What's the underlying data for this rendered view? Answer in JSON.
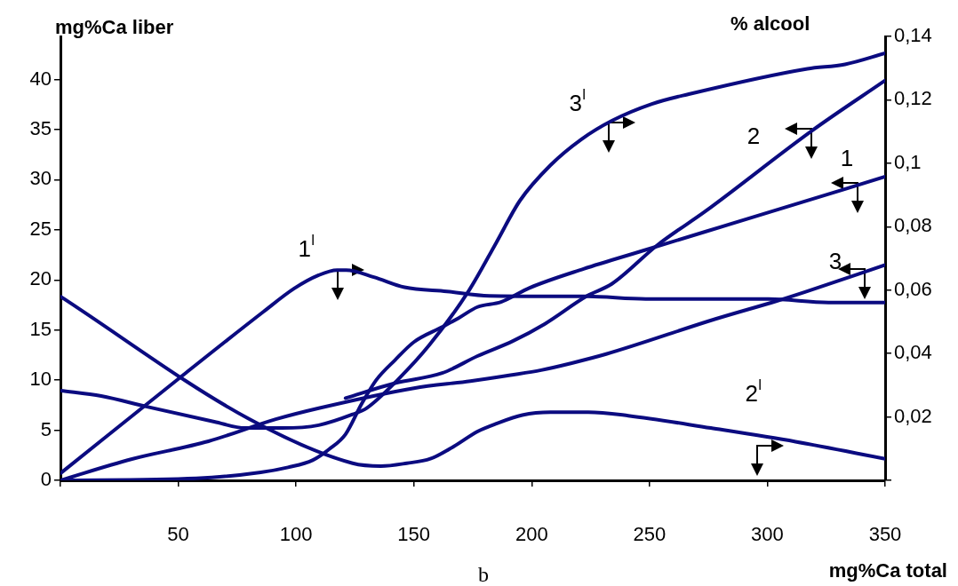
{
  "chart_data": {
    "type": "line",
    "xlabel": "mg%Ca total",
    "ylabel": "mg%Ca liber",
    "y2label": "% alcool",
    "xlim": [
      0,
      350
    ],
    "xticks": [
      {
        "value": 0,
        "label": null
      },
      50,
      100,
      150,
      200,
      250,
      300,
      350
    ],
    "ylim": [
      0,
      44.3
    ],
    "yticks": [
      0,
      5,
      10,
      15,
      20,
      25,
      30,
      35,
      40
    ],
    "y2lim": [
      0,
      0.14
    ],
    "y2ticks": [
      {
        "value": 0,
        "label": null
      },
      {
        "value": 0.02,
        "label": "0,02"
      },
      {
        "value": 0.04,
        "label": "0,04"
      },
      {
        "value": 0.06,
        "label": "0,06"
      },
      {
        "value": 0.08,
        "label": "0,08"
      },
      {
        "value": 0.1,
        "label": "0,1"
      },
      {
        "value": 0.12,
        "label": "0,12"
      },
      {
        "value": 0.14,
        "label": "0,14"
      }
    ],
    "grid": false,
    "legend": false,
    "marker": "none",
    "line_style": "solid",
    "series": [
      {
        "name": "1",
        "color": "#0b0b80",
        "axis": "y",
        "x": [
          0,
          57.6,
          85,
          96.6,
          107,
          114,
          121,
          128,
          134,
          142,
          150,
          162,
          169,
          177,
          187,
          199,
          222,
          247,
          300,
          350
        ],
        "values": [
          0,
          0.2,
          0.8,
          1.3,
          2.0,
          3.1,
          4.6,
          7.7,
          10.0,
          12.0,
          13.8,
          15.3,
          16.2,
          17.3,
          17.8,
          19.2,
          21.1,
          22.9,
          26.7,
          30.3
        ]
      },
      {
        "name": "2",
        "color": "#0b0b80",
        "axis": "y",
        "x": [
          121,
          142,
          162,
          177,
          192,
          205.5,
          223.5,
          234,
          253.5,
          274,
          319,
          350
        ],
        "values": [
          8.2,
          9.7,
          10.7,
          12.4,
          13.9,
          15.6,
          18.4,
          19.6,
          23.5,
          26.9,
          34.9,
          39.9
        ]
      },
      {
        "name": "3",
        "color": "#0b0b80",
        "axis": "y",
        "x": [
          0,
          30,
          62.8,
          91.4,
          109.6,
          150,
          174,
          191,
          204,
          217,
          231.6,
          278,
          304,
          316,
          350
        ],
        "values": [
          0,
          2.1,
          3.9,
          6.1,
          7.2,
          9.2,
          9.9,
          10.5,
          11.0,
          11.7,
          12.6,
          16.1,
          17.9,
          18.8,
          21.5
        ]
      },
      {
        "name": "1$^{I}$",
        "color": "#0b0b80",
        "axis": "y2",
        "x": [
          0,
          52.4,
          86.2,
          99.2,
          109.6,
          117.4,
          121.3,
          133,
          146,
          164,
          182,
          223.7,
          248.4,
          300.5,
          326,
          350
        ],
        "values": [
          0.0022,
          0.0334,
          0.0532,
          0.0605,
          0.0647,
          0.0663,
          0.0663,
          0.0641,
          0.0609,
          0.0596,
          0.0582,
          0.058,
          0.0572,
          0.0572,
          0.0561,
          0.0561
        ]
      },
      {
        "name": "2$^{I}$",
        "color": "#0b0b80",
        "axis": "y2",
        "x": [
          0,
          80,
          124,
          136,
          147,
          157,
          167,
          177,
          185,
          196,
          208,
          224,
          241,
          276,
          312,
          350
        ],
        "values": [
          0.058,
          0.0194,
          0.0054,
          0.0045,
          0.0054,
          0.0068,
          0.0107,
          0.0154,
          0.0179,
          0.0206,
          0.0215,
          0.0215,
          0.0204,
          0.0165,
          0.0122,
          0.0068
        ]
      },
      {
        "name": "3$^{I}$",
        "color": "#0b0b80",
        "axis": "y2",
        "x": [
          0,
          17.3,
          36.8,
          65.3,
          78.5,
          94,
          109.6,
          124,
          130,
          143.4,
          156.5,
          173.4,
          185,
          195,
          208,
          221,
          234,
          251,
          266.7,
          317,
          333,
          350
        ],
        "values": [
          0.0283,
          0.0266,
          0.0232,
          0.0185,
          0.0165,
          0.0165,
          0.0174,
          0.0208,
          0.0228,
          0.0319,
          0.0426,
          0.0599,
          0.075,
          0.0882,
          0.0994,
          0.1075,
          0.1134,
          0.1187,
          0.1218,
          0.1298,
          0.1312,
          0.1347
        ]
      }
    ],
    "annotations": [
      "b"
    ]
  }
}
